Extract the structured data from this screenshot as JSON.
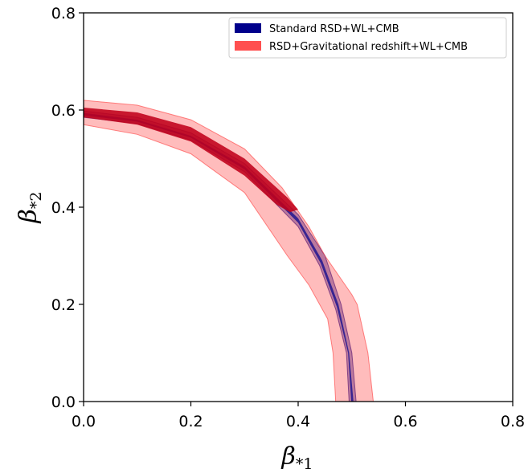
{
  "chart_data": {
    "type": "contour",
    "xlabel": "β*1",
    "ylabel": "β*2",
    "xlim": [
      0.0,
      0.8
    ],
    "ylim": [
      0.0,
      0.8
    ],
    "xticks": [
      0.0,
      0.2,
      0.4,
      0.6,
      0.8
    ],
    "yticks": [
      0.0,
      0.2,
      0.4,
      0.6,
      0.8
    ],
    "xtick_labels": [
      "0.0",
      "0.2",
      "0.4",
      "0.6",
      "0.8"
    ],
    "ytick_labels": [
      "0.0",
      "0.2",
      "0.4",
      "0.6",
      "0.8"
    ],
    "grid": false,
    "legend_position": "top-right",
    "series": [
      {
        "name": "Standard RSD+WL+CMB",
        "color": "#00008b",
        "outer_band": {
          "upper": [
            [
              0.0,
              0.598
            ],
            [
              0.1,
              0.585
            ],
            [
              0.2,
              0.553
            ],
            [
              0.3,
              0.49
            ],
            [
              0.4,
              0.385
            ],
            [
              0.45,
              0.3
            ],
            [
              0.48,
              0.2
            ],
            [
              0.5,
              0.1
            ],
            [
              0.508,
              0.0
            ]
          ],
          "lower": [
            [
              0.0,
              0.585
            ],
            [
              0.1,
              0.572
            ],
            [
              0.2,
              0.538
            ],
            [
              0.3,
              0.473
            ],
            [
              0.4,
              0.36
            ],
            [
              0.44,
              0.28
            ],
            [
              0.47,
              0.19
            ],
            [
              0.49,
              0.1
            ],
            [
              0.495,
              0.0
            ]
          ]
        },
        "inner_band": {
          "upper": [
            [
              0.0,
              0.594
            ],
            [
              0.1,
              0.58
            ],
            [
              0.2,
              0.547
            ],
            [
              0.3,
              0.484
            ],
            [
              0.4,
              0.377
            ],
            [
              0.445,
              0.29
            ],
            [
              0.475,
              0.2
            ],
            [
              0.495,
              0.1
            ],
            [
              0.503,
              0.0
            ]
          ],
          "lower": [
            [
              0.0,
              0.589
            ],
            [
              0.1,
              0.576
            ],
            [
              0.2,
              0.543
            ],
            [
              0.3,
              0.478
            ],
            [
              0.4,
              0.368
            ],
            [
              0.442,
              0.285
            ],
            [
              0.472,
              0.195
            ],
            [
              0.493,
              0.1
            ],
            [
              0.499,
              0.0
            ]
          ]
        }
      },
      {
        "name": "RSD+Gravitational redshift+WL+CMB",
        "color": "#ff5050",
        "outer_band": {
          "upper": [
            [
              0.0,
              0.62
            ],
            [
              0.1,
              0.61
            ],
            [
              0.2,
              0.58
            ],
            [
              0.3,
              0.52
            ],
            [
              0.37,
              0.44
            ],
            [
              0.42,
              0.36
            ],
            [
              0.45,
              0.3
            ],
            [
              0.5,
              0.22
            ],
            [
              0.51,
              0.2
            ],
            [
              0.53,
              0.1
            ],
            [
              0.54,
              0.0
            ]
          ],
          "lower": [
            [
              0.0,
              0.57
            ],
            [
              0.1,
              0.55
            ],
            [
              0.2,
              0.51
            ],
            [
              0.3,
              0.43
            ],
            [
              0.38,
              0.3
            ],
            [
              0.42,
              0.24
            ],
            [
              0.455,
              0.17
            ],
            [
              0.465,
              0.1
            ],
            [
              0.47,
              0.0
            ]
          ]
        },
        "inner_band": {
          "upper": [
            [
              0.0,
              0.605
            ],
            [
              0.1,
              0.595
            ],
            [
              0.2,
              0.565
            ],
            [
              0.3,
              0.5
            ],
            [
              0.38,
              0.42
            ],
            [
              0.4,
              0.395
            ]
          ],
          "lower": [
            [
              0.0,
              0.585
            ],
            [
              0.1,
              0.57
            ],
            [
              0.2,
              0.535
            ],
            [
              0.3,
              0.465
            ],
            [
              0.36,
              0.405
            ],
            [
              0.385,
              0.39
            ]
          ]
        }
      }
    ]
  }
}
